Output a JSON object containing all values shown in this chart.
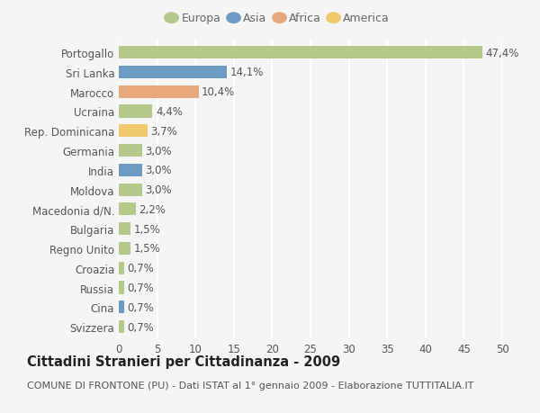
{
  "categories": [
    "Portogallo",
    "Sri Lanka",
    "Marocco",
    "Ucraina",
    "Rep. Dominicana",
    "Germania",
    "India",
    "Moldova",
    "Macedonia d/N.",
    "Bulgaria",
    "Regno Unito",
    "Croazia",
    "Russia",
    "Cina",
    "Svizzera"
  ],
  "values": [
    47.4,
    14.1,
    10.4,
    4.4,
    3.7,
    3.0,
    3.0,
    3.0,
    2.2,
    1.5,
    1.5,
    0.7,
    0.7,
    0.7,
    0.7
  ],
  "labels": [
    "47,4%",
    "14,1%",
    "10,4%",
    "4,4%",
    "3,7%",
    "3,0%",
    "3,0%",
    "3,0%",
    "2,2%",
    "1,5%",
    "1,5%",
    "0,7%",
    "0,7%",
    "0,7%",
    "0,7%"
  ],
  "colors": [
    "#b5c98a",
    "#6d9bc3",
    "#e8a87c",
    "#b5c98a",
    "#f0c96e",
    "#b5c98a",
    "#6d9bc3",
    "#b5c98a",
    "#b5c98a",
    "#b5c98a",
    "#b5c98a",
    "#b5c98a",
    "#b5c98a",
    "#6d9bc3",
    "#b5c98a"
  ],
  "legend_labels": [
    "Europa",
    "Asia",
    "Africa",
    "America"
  ],
  "legend_colors": [
    "#b5c98a",
    "#6d9bc3",
    "#e8a87c",
    "#f0c96e"
  ],
  "title": "Cittadini Stranieri per Cittadinanza - 2009",
  "subtitle": "COMUNE DI FRONTONE (PU) - Dati ISTAT al 1° gennaio 2009 - Elaborazione TUTTITALIA.IT",
  "xlim": [
    0,
    50
  ],
  "xticks": [
    0,
    5,
    10,
    15,
    20,
    25,
    30,
    35,
    40,
    45,
    50
  ],
  "background_color": "#f5f5f5",
  "grid_color": "#ffffff",
  "bar_height": 0.65,
  "label_fontsize": 8.5,
  "tick_fontsize": 8.5,
  "title_fontsize": 10.5,
  "subtitle_fontsize": 8
}
